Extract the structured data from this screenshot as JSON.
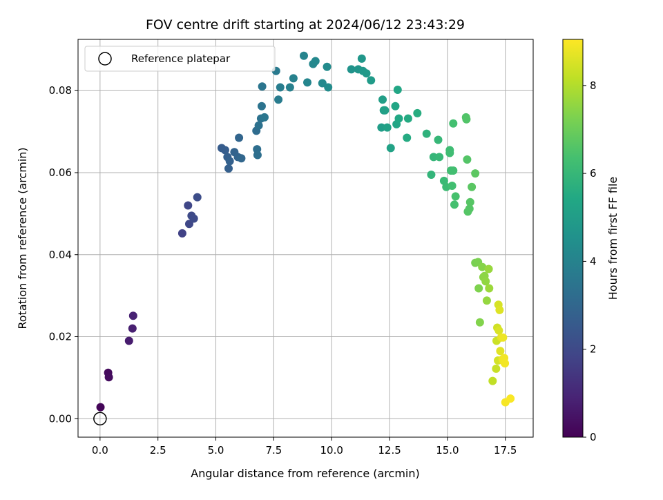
{
  "chart_data": {
    "type": "scatter",
    "title": "FOV centre drift starting at 2024/06/12 23:43:29",
    "xlabel": "Angular distance from reference (arcmin)",
    "ylabel": "Rotation from reference (arcmin)",
    "xlim": [
      -0.95,
      18.7
    ],
    "ylim": [
      -0.0045,
      0.0925
    ],
    "xticks": [
      0.0,
      2.5,
      5.0,
      7.5,
      10.0,
      12.5,
      15.0,
      17.5
    ],
    "xtick_labels": [
      "0.0",
      "2.5",
      "5.0",
      "7.5",
      "10.0",
      "12.5",
      "15.0",
      "17.5"
    ],
    "yticks": [
      0.0,
      0.02,
      0.04,
      0.06,
      0.08
    ],
    "ytick_labels": [
      "0.00",
      "0.02",
      "0.04",
      "0.06",
      "0.08"
    ],
    "grid": true,
    "colormap": "viridis",
    "colorbar": {
      "label": "Hours from first FF file",
      "range": [
        0,
        9.05
      ],
      "ticks": [
        0,
        2,
        4,
        6,
        8
      ],
      "tick_labels": [
        "0",
        "2",
        "4",
        "6",
        "8"
      ]
    },
    "legend": {
      "position": "top-left",
      "entries": [
        "Reference platepar"
      ]
    },
    "reference_point": {
      "x": 0.0,
      "y": 0.0
    },
    "points": [
      [
        0.02,
        0.0028,
        0.1
      ],
      [
        0.35,
        0.0112,
        0.25
      ],
      [
        0.38,
        0.0101,
        0.3
      ],
      [
        1.25,
        0.019,
        0.7
      ],
      [
        1.4,
        0.022,
        0.8
      ],
      [
        1.43,
        0.0251,
        0.85
      ],
      [
        3.55,
        0.0452,
        1.75
      ],
      [
        3.8,
        0.052,
        1.9
      ],
      [
        3.85,
        0.0475,
        1.95
      ],
      [
        3.95,
        0.0495,
        2.0
      ],
      [
        4.05,
        0.0488,
        2.05
      ],
      [
        4.2,
        0.054,
        2.1
      ],
      [
        5.25,
        0.066,
        2.6
      ],
      [
        5.4,
        0.0655,
        2.65
      ],
      [
        5.5,
        0.0638,
        2.7
      ],
      [
        5.55,
        0.061,
        2.75
      ],
      [
        5.6,
        0.0628,
        2.8
      ],
      [
        5.8,
        0.065,
        2.85
      ],
      [
        5.95,
        0.0638,
        2.9
      ],
      [
        6.0,
        0.0685,
        2.95
      ],
      [
        6.1,
        0.0635,
        3.0
      ],
      [
        6.75,
        0.0702,
        3.2
      ],
      [
        6.78,
        0.0657,
        3.25
      ],
      [
        6.8,
        0.0643,
        3.3
      ],
      [
        6.85,
        0.0715,
        3.35
      ],
      [
        6.95,
        0.0732,
        3.4
      ],
      [
        6.98,
        0.0762,
        3.45
      ],
      [
        7.0,
        0.081,
        3.5
      ],
      [
        7.1,
        0.0735,
        3.55
      ],
      [
        7.6,
        0.0848,
        3.7
      ],
      [
        7.7,
        0.0778,
        3.75
      ],
      [
        7.78,
        0.0808,
        3.8
      ],
      [
        8.2,
        0.0808,
        3.9
      ],
      [
        8.35,
        0.083,
        3.95
      ],
      [
        8.8,
        0.0885,
        4.05
      ],
      [
        8.95,
        0.082,
        4.1
      ],
      [
        9.2,
        0.0865,
        4.15
      ],
      [
        9.3,
        0.0872,
        4.2
      ],
      [
        9.6,
        0.0818,
        4.25
      ],
      [
        9.8,
        0.0858,
        4.3
      ],
      [
        9.85,
        0.0808,
        4.35
      ],
      [
        10.85,
        0.0852,
        4.6
      ],
      [
        11.15,
        0.0852,
        4.7
      ],
      [
        11.3,
        0.0878,
        4.75
      ],
      [
        11.35,
        0.0848,
        4.8
      ],
      [
        11.5,
        0.0842,
        4.85
      ],
      [
        11.7,
        0.0825,
        4.9
      ],
      [
        12.15,
        0.071,
        5.0
      ],
      [
        12.2,
        0.0778,
        5.05
      ],
      [
        12.25,
        0.0752,
        5.1
      ],
      [
        12.3,
        0.0752,
        5.12
      ],
      [
        12.4,
        0.071,
        5.15
      ],
      [
        12.55,
        0.066,
        5.2
      ],
      [
        12.75,
        0.0762,
        5.3
      ],
      [
        12.8,
        0.0718,
        5.32
      ],
      [
        12.85,
        0.0802,
        5.35
      ],
      [
        12.9,
        0.0732,
        5.38
      ],
      [
        13.3,
        0.0732,
        5.5
      ],
      [
        13.25,
        0.0685,
        5.52
      ],
      [
        13.7,
        0.0745,
        5.6
      ],
      [
        14.1,
        0.0695,
        5.8
      ],
      [
        14.3,
        0.0595,
        5.9
      ],
      [
        14.4,
        0.0638,
        5.95
      ],
      [
        14.6,
        0.068,
        6.0
      ],
      [
        14.65,
        0.0638,
        6.02
      ],
      [
        14.85,
        0.058,
        6.1
      ],
      [
        14.95,
        0.0565,
        6.15
      ],
      [
        15.1,
        0.0655,
        6.2
      ],
      [
        15.1,
        0.0648,
        6.22
      ],
      [
        15.15,
        0.0605,
        6.25
      ],
      [
        15.2,
        0.0568,
        6.28
      ],
      [
        15.25,
        0.0605,
        6.3
      ],
      [
        15.25,
        0.072,
        6.32
      ],
      [
        15.3,
        0.0522,
        6.35
      ],
      [
        15.35,
        0.0542,
        6.38
      ],
      [
        15.8,
        0.0735,
        6.55
      ],
      [
        15.82,
        0.073,
        6.57
      ],
      [
        15.85,
        0.0632,
        6.6
      ],
      [
        15.88,
        0.0505,
        6.62
      ],
      [
        15.95,
        0.0512,
        6.64
      ],
      [
        15.98,
        0.0528,
        6.66
      ],
      [
        16.05,
        0.0565,
        6.7
      ],
      [
        16.2,
        0.0598,
        6.75
      ],
      [
        16.2,
        0.038,
        7.2
      ],
      [
        16.32,
        0.0382,
        7.25
      ],
      [
        16.35,
        0.0318,
        7.3
      ],
      [
        16.4,
        0.0235,
        7.35
      ],
      [
        16.5,
        0.037,
        7.4
      ],
      [
        16.55,
        0.0345,
        7.45
      ],
      [
        16.6,
        0.0348,
        7.5
      ],
      [
        16.65,
        0.0335,
        7.55
      ],
      [
        16.7,
        0.0288,
        7.6
      ],
      [
        16.78,
        0.0365,
        7.65
      ],
      [
        16.8,
        0.0318,
        7.7
      ],
      [
        16.95,
        0.0092,
        8.2
      ],
      [
        17.1,
        0.0122,
        8.3
      ],
      [
        17.12,
        0.019,
        8.35
      ],
      [
        17.15,
        0.0222,
        8.4
      ],
      [
        17.18,
        0.0142,
        8.45
      ],
      [
        17.2,
        0.0278,
        8.5
      ],
      [
        17.22,
        0.0215,
        8.55
      ],
      [
        17.25,
        0.0265,
        8.6
      ],
      [
        17.28,
        0.0165,
        8.65
      ],
      [
        17.32,
        0.0198,
        8.7
      ],
      [
        17.38,
        0.0145,
        8.8
      ],
      [
        17.4,
        0.0198,
        8.82
      ],
      [
        17.42,
        0.014,
        8.85
      ],
      [
        17.45,
        0.0148,
        8.88
      ],
      [
        17.48,
        0.0135,
        8.9
      ],
      [
        17.5,
        0.004,
        8.95
      ],
      [
        17.72,
        0.0049,
        9.0
      ]
    ]
  }
}
